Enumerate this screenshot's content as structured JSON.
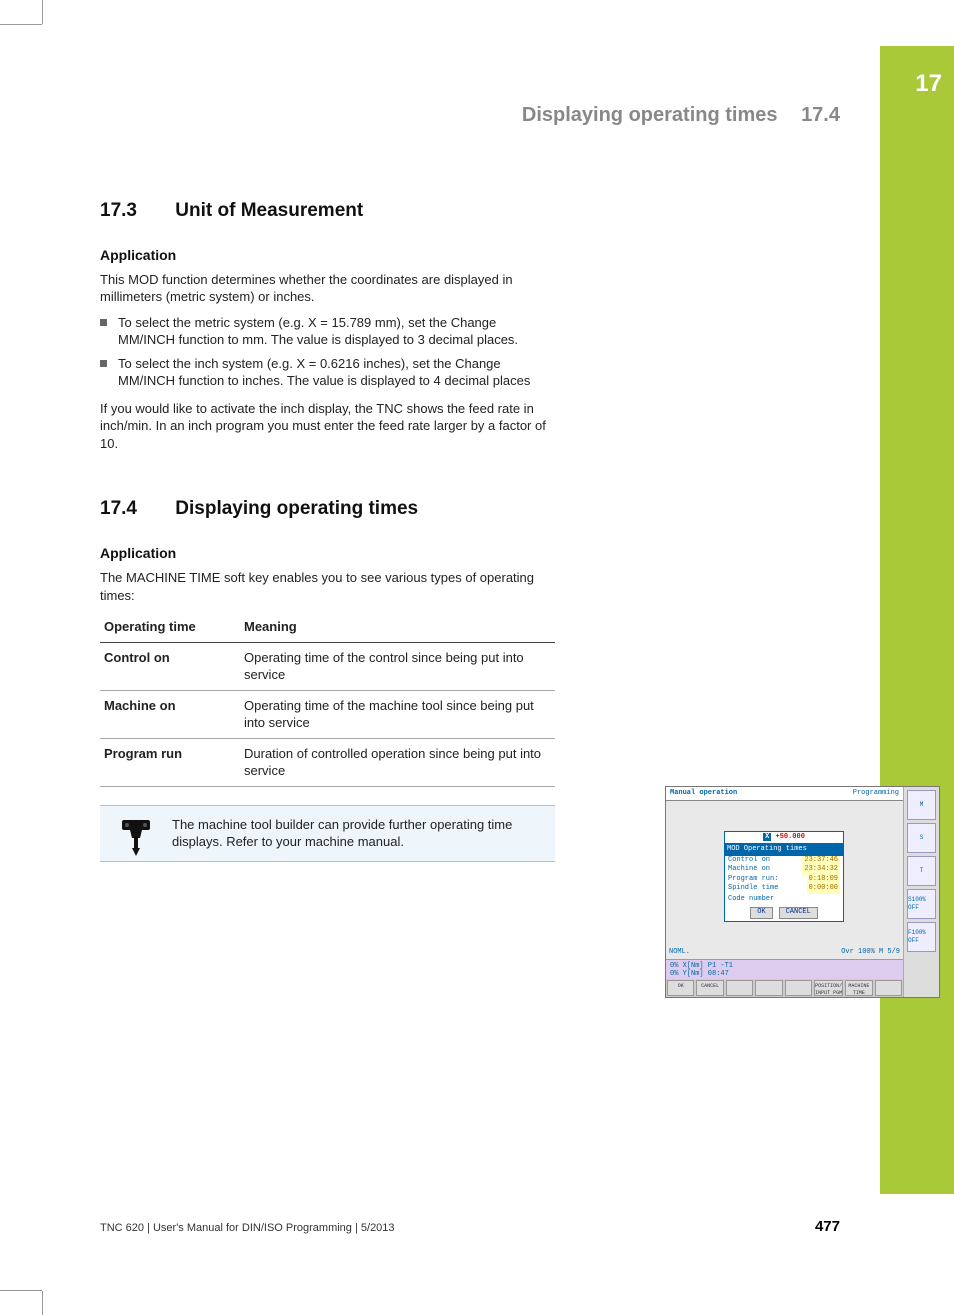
{
  "chapter_tab": "17",
  "running_head": {
    "title": "Displaying operating times",
    "section": "17.4"
  },
  "sec173": {
    "num": "17.3",
    "title": "Unit of Measurement",
    "sub": "Application",
    "intro": "This MOD function determines whether the coordinates are displayed in millimeters (metric system) or inches.",
    "bullets": [
      "To select the metric system (e.g. X = 15.789 mm), set the Change MM/INCH function to mm. The value is displayed to 3 decimal places.",
      "To select the inch system (e.g. X = 0.6216 inches), set the Change MM/INCH function to inches. The value is displayed to 4 decimal places"
    ],
    "outro": "If you would like to activate the inch display, the TNC shows the feed rate in inch/min. In an inch program you must enter the feed rate larger by a factor of 10."
  },
  "sec174": {
    "num": "17.4",
    "title": "Displaying operating times",
    "sub": "Application",
    "intro": "The MACHINE TIME soft key enables you to see various types of operating times:",
    "table": {
      "headers": [
        "Operating time",
        "Meaning"
      ],
      "rows": [
        [
          "Control on",
          "Operating time of the control since being put into service"
        ],
        [
          "Machine on",
          "Operating time of the machine tool since being put into service"
        ],
        [
          "Program run",
          "Duration of controlled operation since being put into service"
        ]
      ]
    },
    "note": "The machine tool builder can provide further operating time displays. Refer to your machine manual."
  },
  "thumb": {
    "title_left": "Manual operation",
    "title_right": "Programming",
    "x_label": "X",
    "x_value": "+50.000",
    "dialog_bar": "MOD  Operating times",
    "rows": [
      {
        "k": "Control on",
        "v": "23:37:46"
      },
      {
        "k": "Machine on",
        "v": "23:34:32"
      },
      {
        "k": "Program run:",
        "v": "0:18:09"
      },
      {
        "k": "Spindle time",
        "v": "0:00:00"
      }
    ],
    "code_label": "Code number",
    "btn_ok": "OK",
    "btn_cancel": "CANCEL",
    "status_left": "NOML.",
    "status_right": "Ovr 100%  M 5/9",
    "stat1": "0% X[Nm] P1  -T1",
    "stat2": "0% Y[Nm] 08:47",
    "softkeys": [
      "OK",
      "CANCEL",
      "",
      "",
      "",
      "POSITION/\nINPUT PGM",
      "MACHINE\nTIME",
      ""
    ],
    "right_icons": [
      "M",
      "S",
      "T",
      "S100%\nOFF",
      "F100%\nOFF"
    ]
  },
  "footer": {
    "left": "TNC 620 | User's Manual for DIN/ISO Programming | 5/2013",
    "page": "477"
  },
  "colors": {
    "accent_green": "#a9c938",
    "heading_gray": "#888888",
    "note_bg": "#eef6fb"
  }
}
